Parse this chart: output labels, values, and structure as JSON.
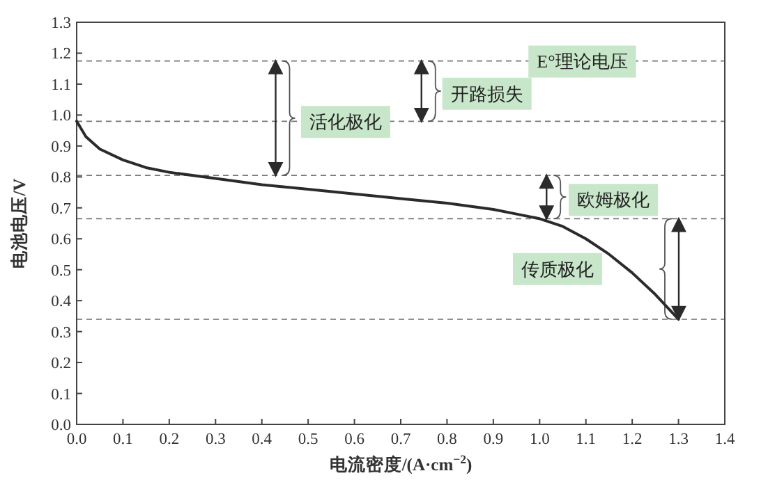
{
  "chart_data": {
    "type": "line",
    "xlabel": "电流密度/(A·cm$^{−2}$)",
    "ylabel": "电池电压/V",
    "xlim": [
      0,
      1.4
    ],
    "ylim": [
      0,
      1.3
    ],
    "xticks": [
      {
        "value": 0,
        "label": "0.0"
      },
      0.1,
      0.2,
      0.3,
      0.4,
      0.5,
      0.6,
      0.7,
      0.8,
      0.9,
      {
        "value": 1,
        "label": "1.0"
      },
      1.1,
      1.2,
      1.3,
      1.4
    ],
    "yticks": [
      {
        "value": 0,
        "label": "0.0"
      },
      0.1,
      0.2,
      0.3,
      0.4,
      0.5,
      0.6,
      0.7,
      0.8,
      0.9,
      {
        "value": 1,
        "label": "1.0"
      },
      1.1,
      1.2,
      1.3
    ],
    "series": [
      {
        "color": "#2b2b2b",
        "x": [
          0,
          0.02,
          0.05,
          0.1,
          0.15,
          0.2,
          0.3,
          0.4,
          0.5,
          0.6,
          0.7,
          0.8,
          0.9,
          0.95,
          1.0,
          1.05,
          1.1,
          1.15,
          1.2,
          1.25,
          1.3
        ],
        "values": [
          0.98,
          0.93,
          0.89,
          0.855,
          0.83,
          0.815,
          0.795,
          0.775,
          0.76,
          0.745,
          0.73,
          0.715,
          0.695,
          0.68,
          0.665,
          0.64,
          0.6,
          0.55,
          0.49,
          0.42,
          0.34
        ]
      }
    ],
    "ref_lines": [
      {
        "axis": "y",
        "value": 1.175,
        "color": "#777777",
        "line_style": "dashed"
      },
      {
        "axis": "y",
        "value": 0.98,
        "color": "#777777",
        "line_style": "dashed"
      },
      {
        "axis": "y",
        "value": 0.805,
        "color": "#777777",
        "line_style": "dashed"
      },
      {
        "axis": "y",
        "value": 0.665,
        "color": "#777777",
        "line_style": "dashed"
      },
      {
        "axis": "y",
        "value": 0.34,
        "color": "#777777",
        "line_style": "dashed"
      }
    ],
    "annotations": [
      "E°理论电压",
      "开路损失",
      "活化极化",
      "欧姆极化",
      "传质极化"
    ]
  }
}
